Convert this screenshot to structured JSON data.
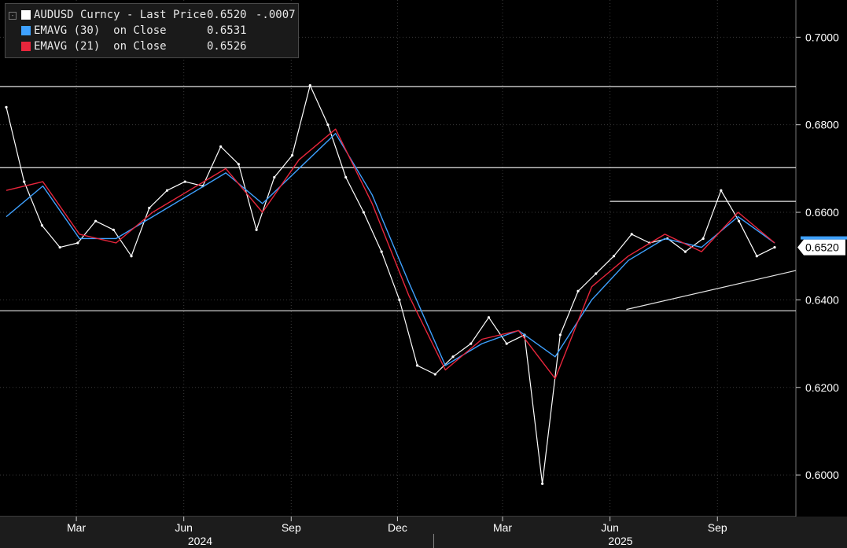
{
  "legend": {
    "rows": [
      {
        "label": "AUDUSD Curncy - Last Price",
        "value": "0.6520",
        "change": "-.0007",
        "color": "#ffffff"
      },
      {
        "label": "EMAVG (30)  on Close",
        "value": "0.6531",
        "change": "",
        "color": "#3ea1ff"
      },
      {
        "label": "EMAVG (21)  on Close",
        "value": "0.6526",
        "change": "",
        "color": "#e8263c"
      }
    ]
  },
  "last_price_tag": "0.6520",
  "chart_data": {
    "type": "line",
    "ylim": [
      0.5905,
      0.7085
    ],
    "y_ticks": [
      "0.7000",
      "0.6800",
      "0.6600",
      "0.6400",
      "0.6200",
      "0.6000"
    ],
    "x_ticks": [
      "Mar",
      "Jun",
      "Sep",
      "Dec",
      "Mar",
      "Jun",
      "Sep"
    ],
    "year_labels": [
      "2024",
      "2025"
    ],
    "horizontal_levels": [
      0.6887,
      0.6702,
      0.6375
    ],
    "shorter_level": {
      "y": 0.6625,
      "from": "2025-06",
      "to": "end"
    },
    "trendline": {
      "from": [
        "2025-06",
        0.6378
      ],
      "to": [
        "end",
        0.6467
      ]
    },
    "grid": true,
    "series": [
      {
        "name": "AUDUSD Curncy - Last Price",
        "color": "#ffffff",
        "x": [
          "2024-01",
          "2024-01",
          "2024-02",
          "2024-02",
          "2024-03",
          "2024-03",
          "2024-04",
          "2024-04",
          "2024-05",
          "2024-05",
          "2024-06",
          "2024-06",
          "2024-07",
          "2024-07",
          "2024-08",
          "2024-08",
          "2024-09",
          "2024-09",
          "2024-10",
          "2024-10",
          "2024-11",
          "2024-11",
          "2024-12",
          "2024-12",
          "2025-01",
          "2025-01",
          "2025-02",
          "2025-02",
          "2025-03",
          "2025-03",
          "2025-04",
          "2025-04",
          "2025-05",
          "2025-05",
          "2025-06",
          "2025-06",
          "2025-07",
          "2025-07",
          "2025-08",
          "2025-08",
          "2025-09",
          "2025-09",
          "2025-10",
          "2025-10"
        ],
        "values": [
          0.684,
          0.667,
          0.657,
          0.652,
          0.653,
          0.658,
          0.656,
          0.65,
          0.661,
          0.665,
          0.667,
          0.666,
          0.675,
          0.671,
          0.656,
          0.668,
          0.673,
          0.689,
          0.68,
          0.668,
          0.66,
          0.651,
          0.64,
          0.625,
          0.623,
          0.627,
          0.63,
          0.636,
          0.63,
          0.632,
          0.598,
          0.632,
          0.642,
          0.646,
          0.65,
          0.655,
          0.653,
          0.654,
          0.651,
          0.654,
          0.665,
          0.658,
          0.65,
          0.652
        ]
      },
      {
        "name": "EMAVG (30) on Close",
        "color": "#3ea1ff",
        "x": [
          "2024-01",
          "2024-02",
          "2024-03",
          "2024-04",
          "2024-05",
          "2024-06",
          "2024-07",
          "2024-08",
          "2024-09",
          "2024-10",
          "2024-11",
          "2024-12",
          "2025-01",
          "2025-02",
          "2025-03",
          "2025-04",
          "2025-05",
          "2025-06",
          "2025-07",
          "2025-08",
          "2025-09",
          "2025-10"
        ],
        "values": [
          0.659,
          0.666,
          0.654,
          0.654,
          0.659,
          0.664,
          0.669,
          0.662,
          0.67,
          0.678,
          0.664,
          0.644,
          0.625,
          0.63,
          0.633,
          0.627,
          0.64,
          0.649,
          0.654,
          0.652,
          0.659,
          0.653
        ]
      },
      {
        "name": "EMAVG (21) on Close",
        "color": "#e8263c",
        "x": [
          "2024-01",
          "2024-02",
          "2024-03",
          "2024-04",
          "2024-05",
          "2024-06",
          "2024-07",
          "2024-08",
          "2024-09",
          "2024-10",
          "2024-11",
          "2024-12",
          "2025-01",
          "2025-02",
          "2025-03",
          "2025-04",
          "2025-05",
          "2025-06",
          "2025-07",
          "2025-08",
          "2025-09",
          "2025-10"
        ],
        "values": [
          0.665,
          0.667,
          0.655,
          0.653,
          0.66,
          0.665,
          0.67,
          0.66,
          0.672,
          0.679,
          0.662,
          0.641,
          0.624,
          0.631,
          0.633,
          0.622,
          0.643,
          0.65,
          0.655,
          0.651,
          0.66,
          0.653
        ]
      }
    ]
  }
}
